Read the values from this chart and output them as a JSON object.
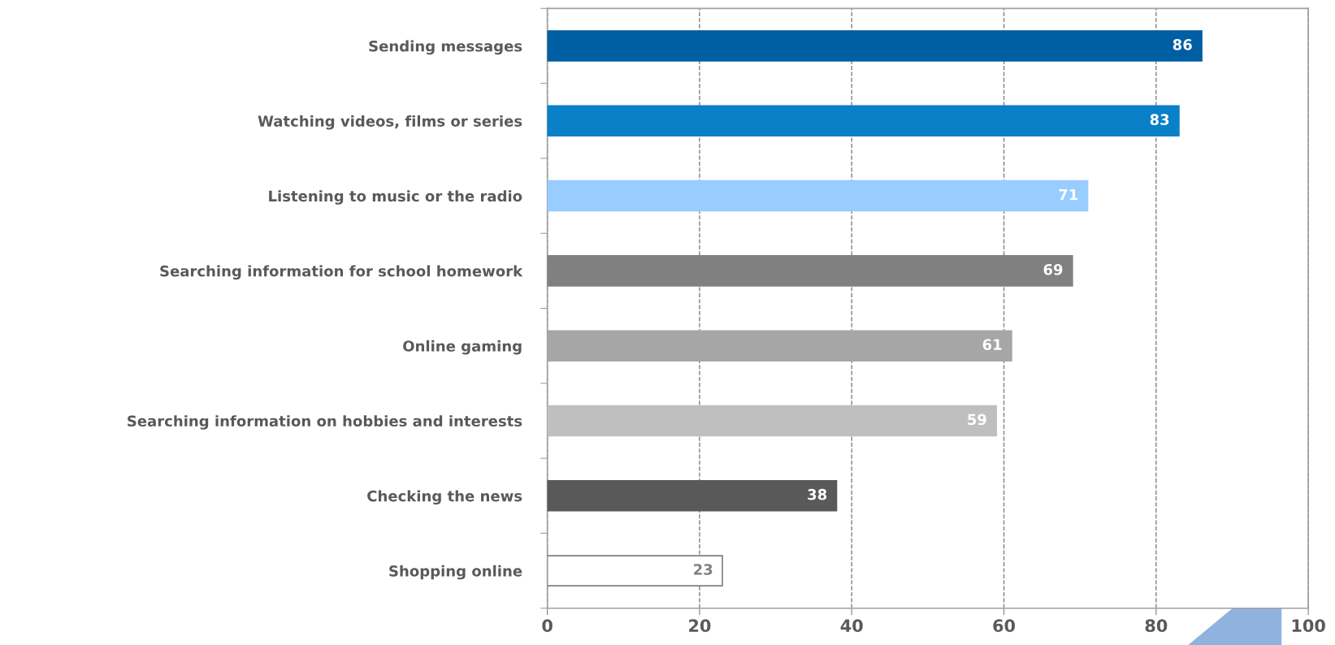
{
  "chart_data": {
    "type": "bar",
    "orientation": "horizontal",
    "categories": [
      "Sending messages",
      "Watching videos, films or series",
      "Listening to music or the radio",
      "Searching information for school homework",
      "Online gaming",
      "Searching information on hobbies and interests",
      "Checking the news",
      "Shopping online"
    ],
    "values": [
      86,
      83,
      71,
      69,
      61,
      59,
      38,
      23
    ],
    "colors": [
      "#005ea2",
      "#0a80c8",
      "#99ccff",
      "#808080",
      "#a6a6a6",
      "#bfbfbf",
      "#595959",
      "#ffffff"
    ],
    "xlim": [
      0,
      100
    ],
    "xticks": [
      0,
      20,
      40,
      60,
      80,
      100
    ],
    "grid": "x",
    "data_labels": true
  }
}
